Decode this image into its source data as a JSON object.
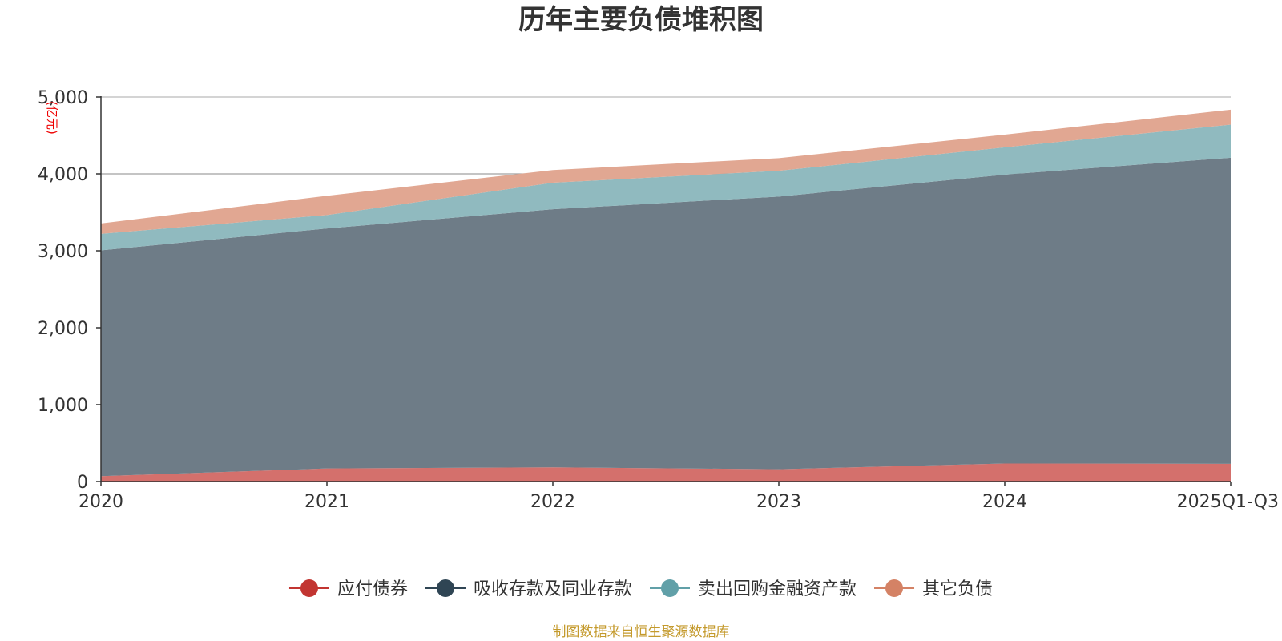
{
  "chart_data": {
    "type": "area",
    "stacked": true,
    "title": "历年主要负债堆积图",
    "unit": "(亿元)",
    "x": [
      "2020",
      "2021",
      "2022",
      "2023",
      "2024",
      "2025Q1-Q3"
    ],
    "ylim": [
      0,
      5000
    ],
    "yticks": [
      0,
      1000,
      2000,
      3000,
      4000,
      5000
    ],
    "ytick_labels": [
      "0",
      "1,000",
      "2,000",
      "3,000",
      "4,000",
      "5,000"
    ],
    "grid": true,
    "legend_position": "bottom",
    "series": [
      {
        "name": "应付债券",
        "values": [
          70,
          170,
          185,
          160,
          235,
          230
        ],
        "color": "#c23531",
        "fill": "#d4706c"
      },
      {
        "name": "吸收存款及同业存款",
        "values": [
          2935,
          3120,
          3355,
          3545,
          3755,
          3980
        ],
        "color": "#2f4554",
        "fill": "#6e7c87"
      },
      {
        "name": "卖出回购金融资产款",
        "values": [
          215,
          175,
          345,
          335,
          355,
          430
        ],
        "color": "#61a0a8",
        "fill": "#90babf"
      },
      {
        "name": "其它负债",
        "values": [
          135,
          250,
          165,
          165,
          165,
          195
        ],
        "color": "#d48265",
        "fill": "#e1a792"
      }
    ],
    "source": "制图数据来自恒生聚源数据库"
  }
}
